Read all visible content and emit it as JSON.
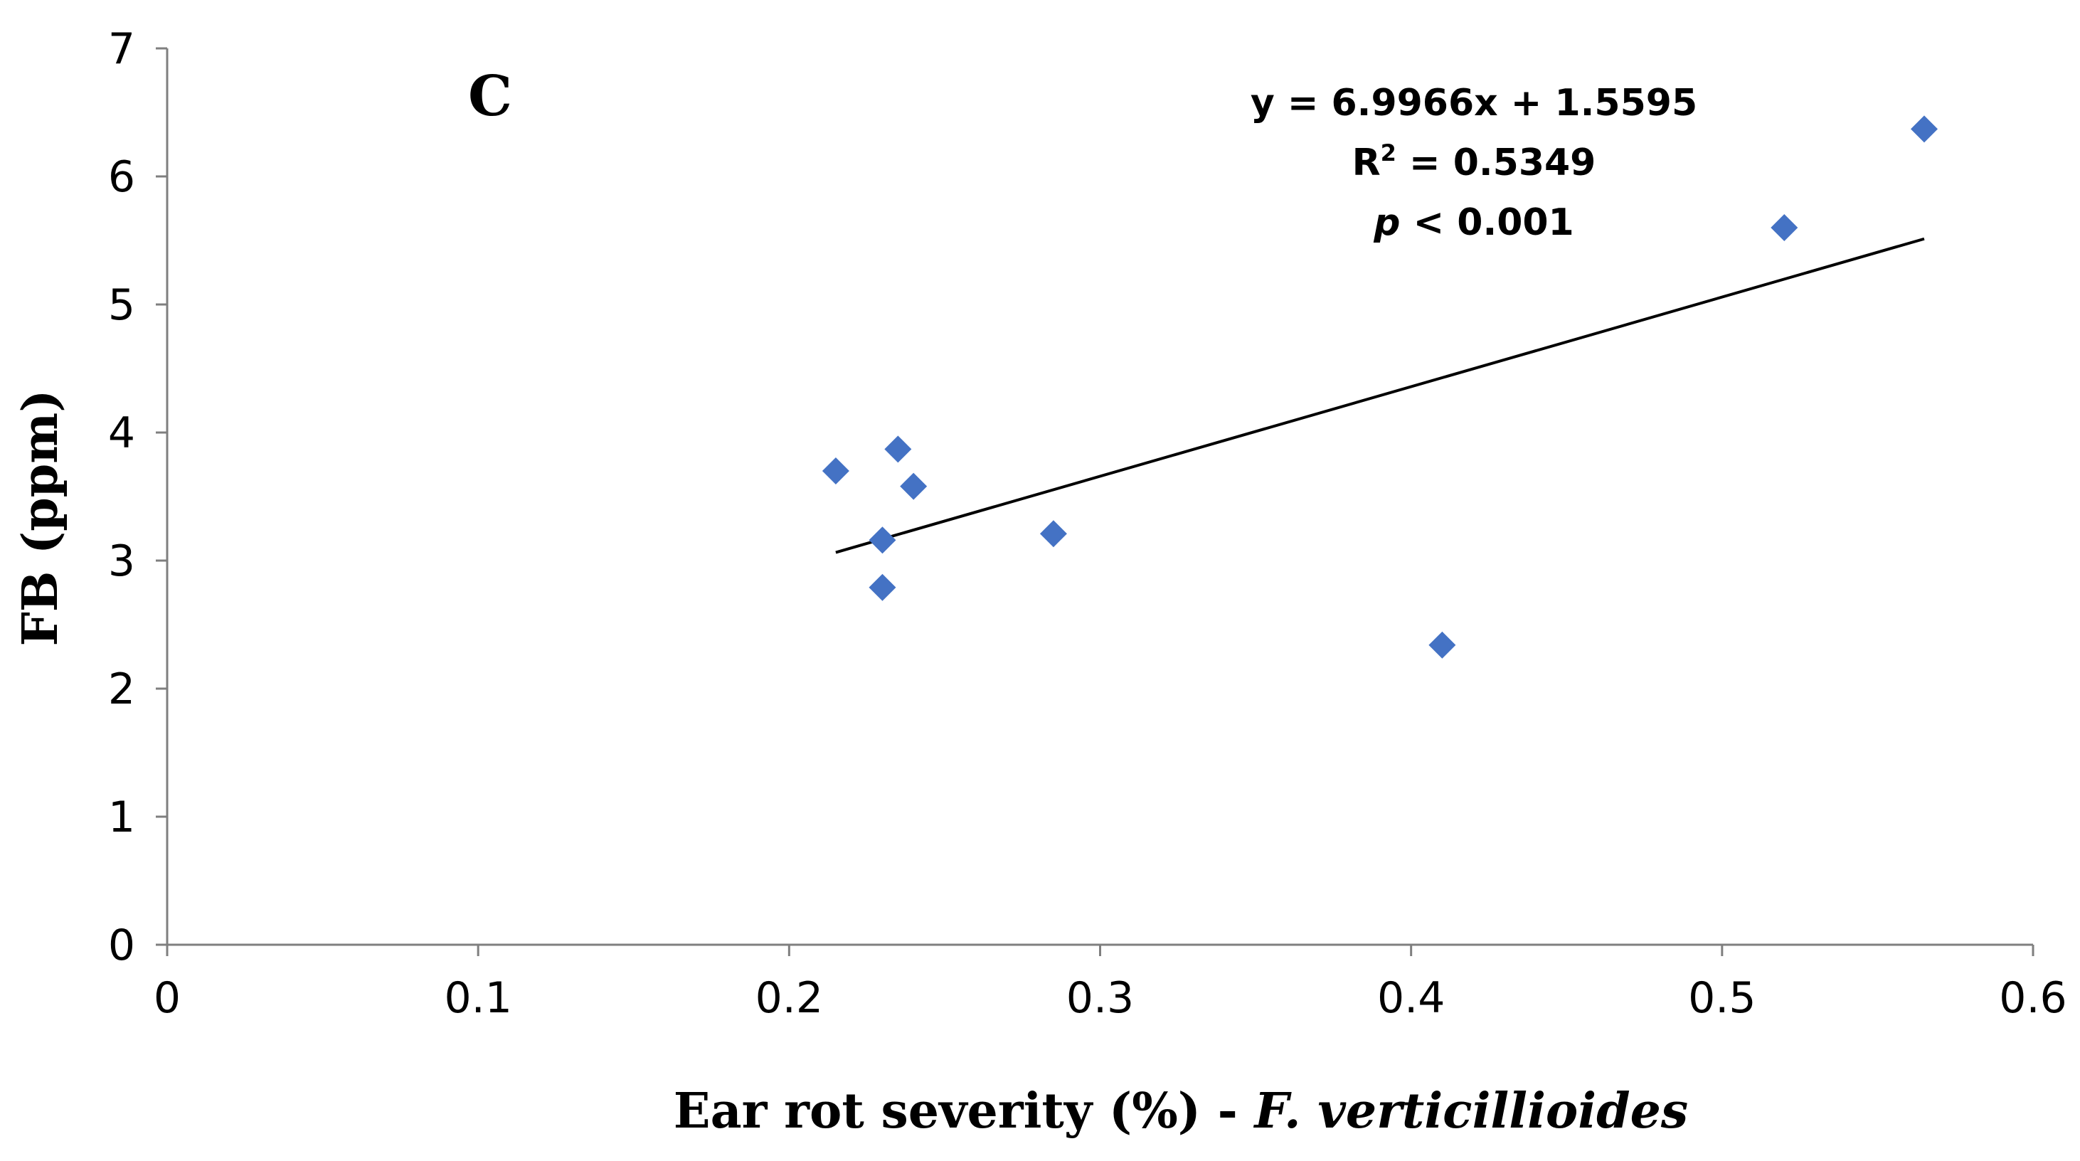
{
  "chart_data": {
    "type": "scatter",
    "panel_label": "C",
    "xlabel_main": "Ear rot severity (%) - ",
    "xlabel_italic": "F. verticillioides",
    "ylabel": "FB (ppm)",
    "xlim": [
      0,
      0.6
    ],
    "ylim": [
      0,
      7
    ],
    "xticks": [
      0,
      0.1,
      0.2,
      0.3,
      0.4,
      0.5,
      0.6
    ],
    "xtick_labels": [
      "0",
      "0.1",
      "0.2",
      "0.3",
      "0.4",
      "0.5",
      "0.6"
    ],
    "yticks": [
      0,
      1,
      2,
      3,
      4,
      5,
      6,
      7
    ],
    "ytick_labels": [
      "0",
      "1",
      "2",
      "3",
      "4",
      "5",
      "6",
      "7"
    ],
    "grid": false,
    "marker_color": "#4472C4",
    "trend_color": "#000000",
    "points": [
      {
        "x": 0.215,
        "y": 3.7
      },
      {
        "x": 0.23,
        "y": 3.16
      },
      {
        "x": 0.23,
        "y": 2.79
      },
      {
        "x": 0.235,
        "y": 3.87
      },
      {
        "x": 0.24,
        "y": 3.58
      },
      {
        "x": 0.285,
        "y": 3.21
      },
      {
        "x": 0.41,
        "y": 2.34
      },
      {
        "x": 0.52,
        "y": 5.6
      },
      {
        "x": 0.565,
        "y": 6.37
      }
    ],
    "trendline": {
      "slope": 6.9966,
      "intercept": 1.5595,
      "x_range": [
        0.215,
        0.565
      ]
    },
    "annotation": {
      "equation": "y = 6.9966x + 1.5595",
      "r2_prefix": "R",
      "r2_sup": "2",
      "r2_value": " = 0.5349",
      "p_symbol": "p",
      "p_value": " < 0.001"
    }
  }
}
